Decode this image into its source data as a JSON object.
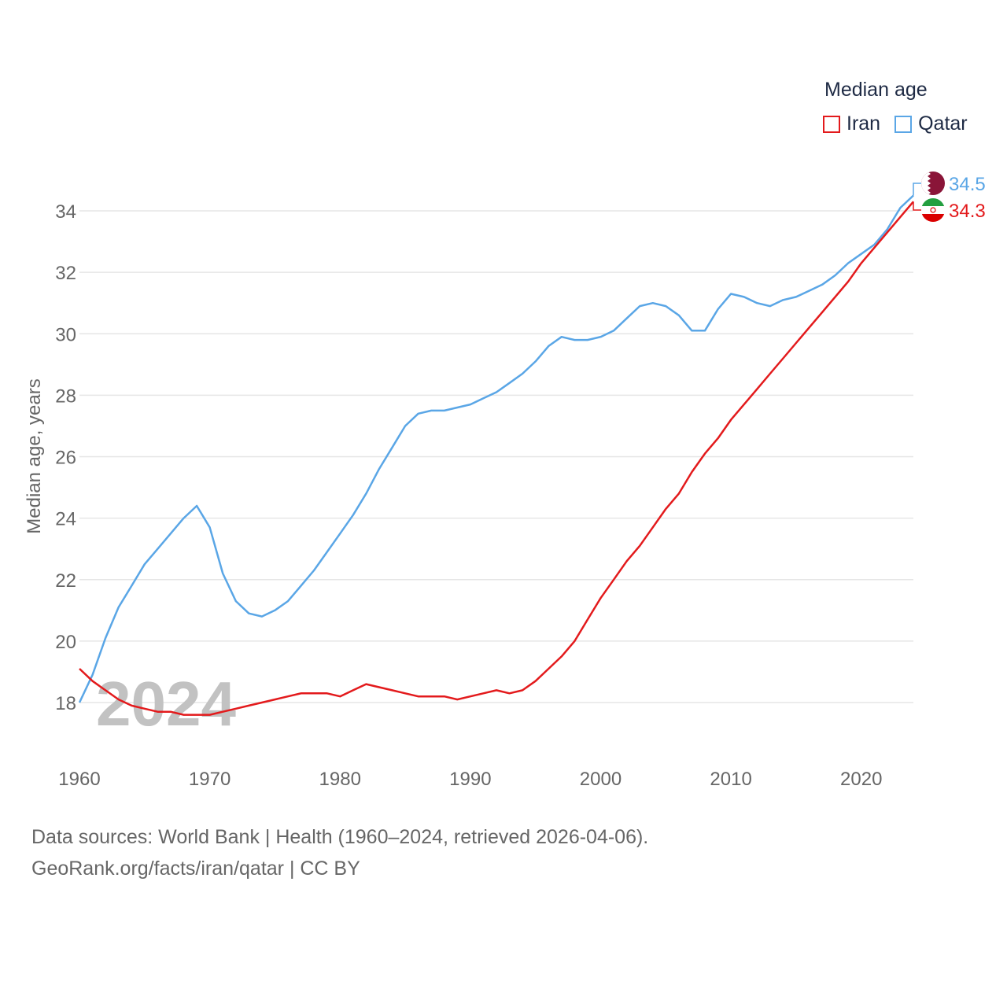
{
  "chart_data": {
    "type": "line",
    "title": "Median age",
    "xlabel": "",
    "ylabel": "Median age, years",
    "xlim": [
      1960,
      2024
    ],
    "ylim": [
      16.6,
      35.5
    ],
    "yticks": [
      "18",
      "20",
      "22",
      "24",
      "26",
      "28",
      "30",
      "32",
      "34"
    ],
    "xticks": [
      "1960",
      "1970",
      "1980",
      "1990",
      "2000",
      "2010",
      "2020"
    ],
    "year_watermark": "2024",
    "grid": true,
    "legend_position": "top-right",
    "x": [
      1960,
      1961,
      1962,
      1963,
      1964,
      1965,
      1966,
      1967,
      1968,
      1969,
      1970,
      1971,
      1972,
      1973,
      1974,
      1975,
      1976,
      1977,
      1978,
      1979,
      1980,
      1981,
      1982,
      1983,
      1984,
      1985,
      1986,
      1987,
      1988,
      1989,
      1990,
      1991,
      1992,
      1993,
      1994,
      1995,
      1996,
      1997,
      1998,
      1999,
      2000,
      2001,
      2002,
      2003,
      2004,
      2005,
      2006,
      2007,
      2008,
      2009,
      2010,
      2011,
      2012,
      2013,
      2014,
      2015,
      2016,
      2017,
      2018,
      2019,
      2020,
      2021,
      2022,
      2023,
      2024
    ],
    "series": [
      {
        "name": "Iran",
        "color": "#e31a1c",
        "end_label": "34.3",
        "flag": "iran-flag-icon",
        "values": [
          19.1,
          18.7,
          18.4,
          18.1,
          17.9,
          17.8,
          17.7,
          17.7,
          17.6,
          17.6,
          17.6,
          17.7,
          17.8,
          17.9,
          18.0,
          18.1,
          18.2,
          18.3,
          18.3,
          18.3,
          18.2,
          18.4,
          18.6,
          18.5,
          18.4,
          18.3,
          18.2,
          18.2,
          18.2,
          18.1,
          18.2,
          18.3,
          18.4,
          18.3,
          18.4,
          18.7,
          19.1,
          19.5,
          20.0,
          20.7,
          21.4,
          22.0,
          22.6,
          23.1,
          23.7,
          24.3,
          24.8,
          25.5,
          26.1,
          26.6,
          27.2,
          27.7,
          28.2,
          28.7,
          29.2,
          29.7,
          30.2,
          30.7,
          31.2,
          31.7,
          32.3,
          32.8,
          33.3,
          33.8,
          34.3
        ]
      },
      {
        "name": "Qatar",
        "color": "#5aa6e6",
        "end_label": "34.5",
        "flag": "qatar-flag-icon",
        "values": [
          18.0,
          18.9,
          20.1,
          21.1,
          21.8,
          22.5,
          23.0,
          23.5,
          24.0,
          24.4,
          23.7,
          22.2,
          21.3,
          20.9,
          20.8,
          21.0,
          21.3,
          21.8,
          22.3,
          22.9,
          23.5,
          24.1,
          24.8,
          25.6,
          26.3,
          27.0,
          27.4,
          27.5,
          27.5,
          27.6,
          27.7,
          27.9,
          28.1,
          28.4,
          28.7,
          29.1,
          29.6,
          29.9,
          29.8,
          29.8,
          29.9,
          30.1,
          30.5,
          30.9,
          31.0,
          30.9,
          30.6,
          30.1,
          30.1,
          30.8,
          31.3,
          31.2,
          31.0,
          30.9,
          31.1,
          31.2,
          31.4,
          31.6,
          31.9,
          32.3,
          32.6,
          32.9,
          33.4,
          34.1,
          34.5
        ]
      }
    ]
  },
  "footer": {
    "line1": "Data sources: World Bank | Health (1960–2024, retrieved 2026-04-06).",
    "line2": "GeoRank.org/facts/iran/qatar | CC BY"
  }
}
